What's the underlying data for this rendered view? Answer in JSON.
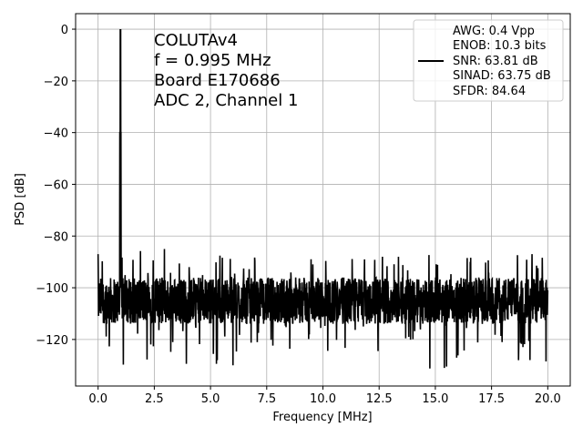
{
  "chart_data": {
    "type": "line",
    "xlabel": "Frequency [MHz]",
    "ylabel": "PSD [dB]",
    "xlim": [
      -1.0,
      21.0
    ],
    "ylim": [
      -138,
      6
    ],
    "xticks": [
      0.0,
      2.5,
      5.0,
      7.5,
      10.0,
      12.5,
      15.0,
      17.5,
      20.0
    ],
    "xtick_labels": [
      "0.0",
      "2.5",
      "5.0",
      "7.5",
      "10.0",
      "12.5",
      "15.0",
      "17.5",
      "20.0"
    ],
    "yticks": [
      0,
      -20,
      -40,
      -60,
      -80,
      -100,
      -120
    ],
    "ytick_labels": [
      "0",
      "−20",
      "−40",
      "−60",
      "−80",
      "−100",
      "−120"
    ],
    "grid": true,
    "line_color": "#000000",
    "annotation": {
      "lines": [
        "COLUTAv4",
        "f = 0.995 MHz",
        "Board E170686",
        "ADC 2, Channel 1"
      ]
    },
    "legend": {
      "position": "top-right",
      "lines": [
        "AWG: 0.4 Vpp",
        "ENOB: 10.3 bits",
        "SNR: 63.81 dB",
        "SINAD: 63.75 dB",
        "SFDR: 84.64"
      ]
    },
    "series": [
      {
        "x_start": 0.0,
        "x_end": 20.0,
        "noise_floor_db": -105,
        "signal_peak": {
          "x": 0.995,
          "y": 0
        },
        "points": [
          {
            "x": 0.0,
            "y": -87
          },
          {
            "x": 0.995,
            "y": 0
          },
          {
            "x": 2.95,
            "y": -85
          },
          {
            "x": 4.05,
            "y": -92
          },
          {
            "x": 5.3,
            "y": -128
          },
          {
            "x": 6.0,
            "y": -130
          },
          {
            "x": 11.85,
            "y": -89
          },
          {
            "x": 15.4,
            "y": -131
          },
          {
            "x": 18.7,
            "y": -128
          },
          {
            "x": 19.3,
            "y": -87
          },
          {
            "x": 20.0,
            "y": -101
          }
        ]
      }
    ]
  }
}
